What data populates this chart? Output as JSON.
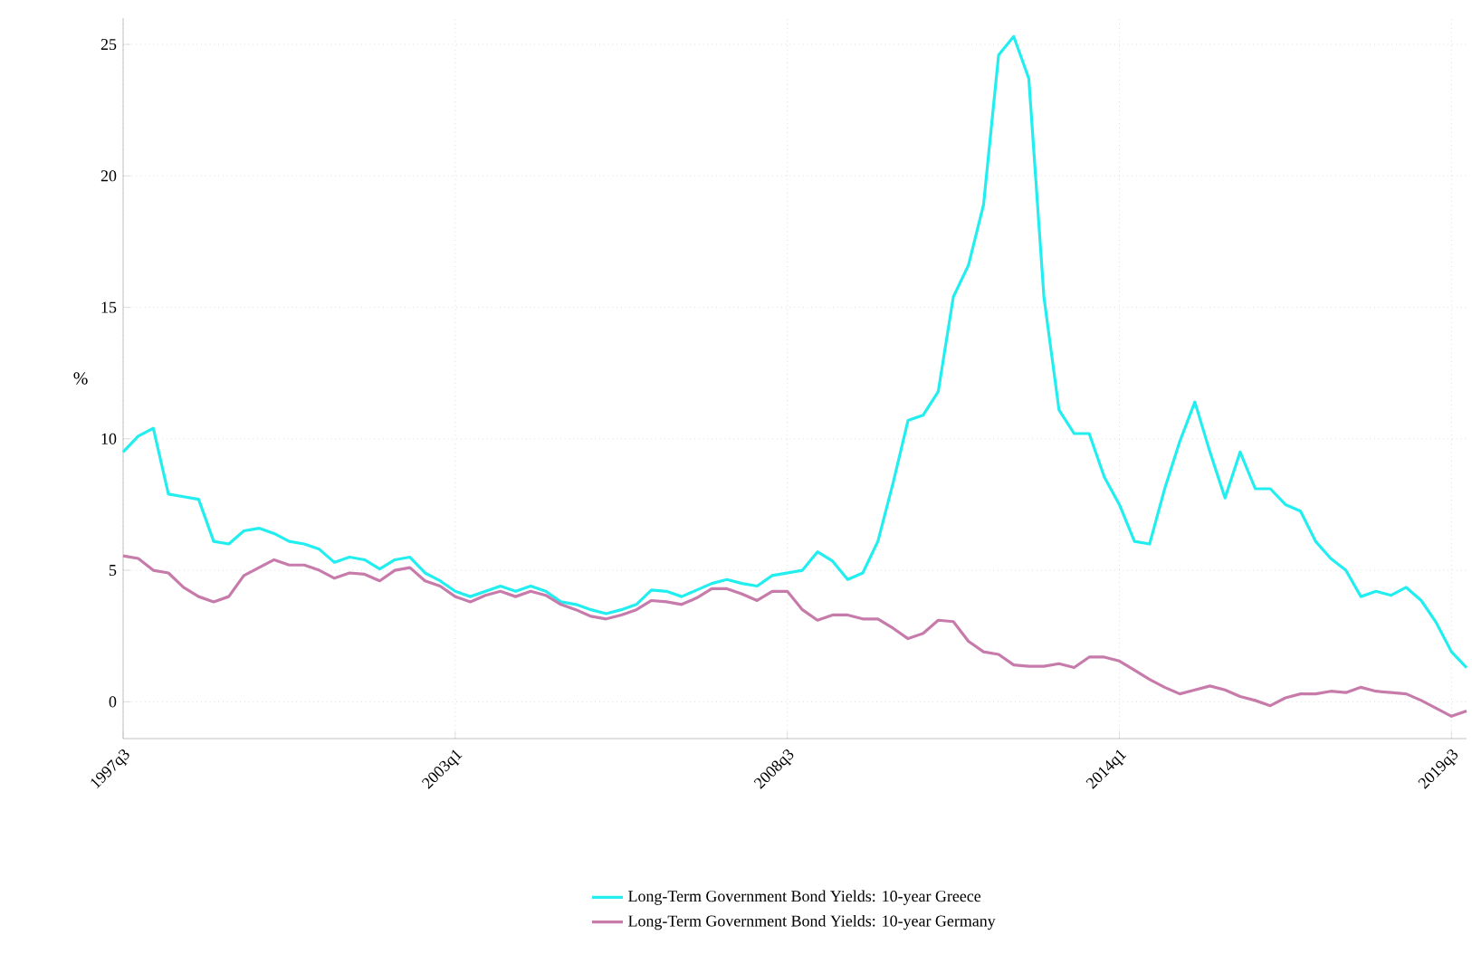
{
  "chart_data": {
    "type": "line",
    "ylabel": "%",
    "categories": [
      "1997q3",
      null,
      null,
      null,
      null,
      null,
      null,
      null,
      null,
      null,
      null,
      null,
      null,
      null,
      null,
      null,
      null,
      null,
      null,
      null,
      null,
      null,
      "2003q1",
      null,
      null,
      null,
      null,
      null,
      null,
      null,
      null,
      null,
      null,
      null,
      null,
      null,
      null,
      null,
      null,
      null,
      null,
      null,
      null,
      null,
      "2008q3",
      null,
      null,
      null,
      null,
      null,
      null,
      null,
      null,
      null,
      null,
      null,
      null,
      null,
      null,
      null,
      null,
      null,
      null,
      null,
      null,
      null,
      "2014q1",
      null,
      null,
      null,
      null,
      null,
      null,
      null,
      null,
      null,
      null,
      null,
      null,
      null,
      null,
      null,
      null,
      null,
      null,
      null,
      null,
      null,
      "2019q3",
      null
    ],
    "series": [
      {
        "name": "Long-Term Government Bond Yields: 10-year Greece",
        "color": "#22eef0",
        "values": [
          9.5,
          10.1,
          10.4,
          7.9,
          7.8,
          7.7,
          6.1,
          6.0,
          6.5,
          6.6,
          6.4,
          6.1,
          6.0,
          5.8,
          5.3,
          5.5,
          5.4,
          5.05,
          5.4,
          5.5,
          4.9,
          4.6,
          4.2,
          4.0,
          4.2,
          4.4,
          4.2,
          4.4,
          4.2,
          3.8,
          3.7,
          3.5,
          3.35,
          3.5,
          3.7,
          4.25,
          4.2,
          4.0,
          4.25,
          4.5,
          4.65,
          4.5,
          4.4,
          4.8,
          4.9,
          5.0,
          5.7,
          5.35,
          4.65,
          4.9,
          6.1,
          8.3,
          10.7,
          10.9,
          11.8,
          15.4,
          16.6,
          18.9,
          24.6,
          25.3,
          23.7,
          15.4,
          11.1,
          10.2,
          10.2,
          8.55,
          7.5,
          6.1,
          6.0,
          8.1,
          9.9,
          11.4,
          9.5,
          7.75,
          9.5,
          8.1,
          8.1,
          7.5,
          7.25,
          6.1,
          5.45,
          5.0,
          4.0,
          4.2,
          4.05,
          4.35,
          3.85,
          3.0,
          1.9,
          1.3
        ]
      },
      {
        "name": "Long-Term Government Bond Yields: 10-year Germany",
        "color": "#c77bab",
        "values": [
          5.55,
          5.45,
          5.0,
          4.9,
          4.35,
          4.0,
          3.8,
          4.0,
          4.8,
          5.1,
          5.4,
          5.2,
          5.2,
          5.0,
          4.7,
          4.9,
          4.85,
          4.6,
          5.0,
          5.1,
          4.6,
          4.4,
          4.0,
          3.8,
          4.05,
          4.2,
          4.0,
          4.2,
          4.05,
          3.7,
          3.5,
          3.25,
          3.15,
          3.3,
          3.5,
          3.85,
          3.8,
          3.7,
          3.95,
          4.3,
          4.3,
          4.1,
          3.85,
          4.2,
          4.2,
          3.5,
          3.1,
          3.3,
          3.3,
          3.15,
          3.15,
          2.8,
          2.4,
          2.6,
          3.1,
          3.05,
          2.3,
          1.9,
          1.8,
          1.4,
          1.35,
          1.35,
          1.45,
          1.3,
          1.7,
          1.7,
          1.55,
          1.2,
          0.85,
          0.55,
          0.3,
          0.45,
          0.6,
          0.45,
          0.2,
          0.05,
          -0.15,
          0.15,
          0.3,
          0.3,
          0.4,
          0.35,
          0.55,
          0.4,
          0.35,
          0.3,
          0.05,
          -0.25,
          -0.55,
          -0.35
        ]
      }
    ],
    "ylim": [
      -1.4,
      26
    ],
    "yticks": [
      0,
      5,
      10,
      15,
      20,
      25
    ],
    "grid": true,
    "legend": "bottom",
    "marker": "none",
    "line_style": "solid"
  }
}
